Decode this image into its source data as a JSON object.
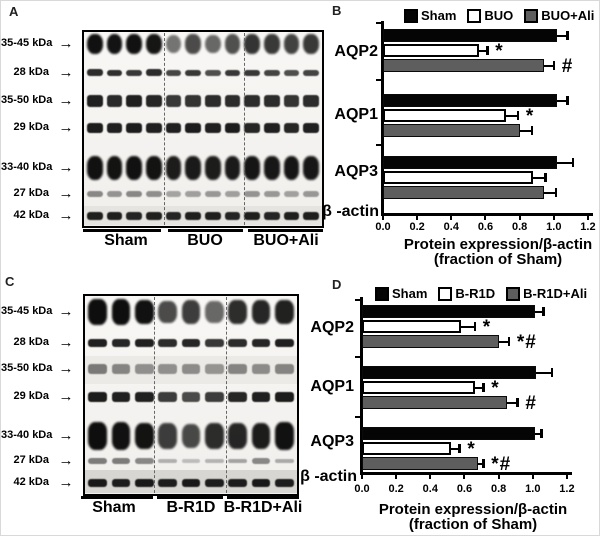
{
  "figure": {
    "panel_letters": {
      "A": "A",
      "B": "B",
      "C": "C",
      "D": "D"
    }
  },
  "icons": {
    "arrow": "→"
  },
  "blots": {
    "A": {
      "kda_labels": [
        "35-45 kDa",
        "28 kDa",
        "35-50 kDa",
        "29 kDa",
        "33-40 kDa",
        "27 kDa",
        "42 kDa"
      ],
      "groups": [
        "Sham",
        "BUO",
        "BUO+Ali"
      ],
      "lanes_per_group": 4,
      "rows": [
        {
          "kda": "35-45 kDa",
          "intensities": [
            0.97,
            0.96,
            0.97,
            0.95,
            0.55,
            0.72,
            0.6,
            0.7,
            0.82,
            0.8,
            0.76,
            0.8
          ]
        },
        {
          "kda": "28 kDa",
          "intensities": [
            0.85,
            0.84,
            0.8,
            0.85,
            0.74,
            0.8,
            0.7,
            0.8,
            0.8,
            0.75,
            0.7,
            0.75
          ]
        },
        {
          "kda": "35-50 kDa",
          "intensities": [
            0.9,
            0.86,
            0.9,
            0.88,
            0.8,
            0.82,
            0.85,
            0.85,
            0.85,
            0.85,
            0.82,
            0.85
          ]
        },
        {
          "kda": "29 kDa",
          "intensities": [
            0.92,
            0.9,
            0.92,
            0.9,
            0.9,
            0.92,
            0.9,
            0.92,
            0.88,
            0.9,
            0.88,
            0.9
          ]
        },
        {
          "kda": "33-40 kDa",
          "intensities": [
            0.97,
            0.96,
            0.97,
            0.96,
            0.92,
            0.93,
            0.92,
            0.93,
            0.95,
            0.94,
            0.95,
            0.94
          ]
        },
        {
          "kda": "27 kDa",
          "intensities": [
            0.45,
            0.4,
            0.45,
            0.42,
            0.33,
            0.35,
            0.38,
            0.35,
            0.4,
            0.38,
            0.34,
            0.38
          ]
        },
        {
          "kda": "42 kDa",
          "intensities": [
            0.9,
            0.9,
            0.88,
            0.9,
            0.88,
            0.9,
            0.9,
            0.88,
            0.9,
            0.88,
            0.9,
            0.9
          ]
        }
      ]
    },
    "C": {
      "kda_labels": [
        "35-45 kDa",
        "28 kDa",
        "35-50 kDa",
        "29 kDa",
        "33-40 kDa",
        "27 kDa",
        "42 kDa"
      ],
      "groups": [
        "Sham",
        "B-R1D",
        "B-R1D+Ali"
      ],
      "lanes_per_group": 3,
      "rows": [
        {
          "kda": "35-45 kDa",
          "intensities": [
            0.98,
            0.98,
            0.97,
            0.72,
            0.78,
            0.6,
            0.85,
            0.88,
            0.9
          ]
        },
        {
          "kda": "28 kDa",
          "intensities": [
            0.9,
            0.88,
            0.9,
            0.85,
            0.88,
            0.8,
            0.85,
            0.88,
            0.9
          ]
        },
        {
          "kda": "35-50 kDa",
          "intensities": [
            0.5,
            0.45,
            0.4,
            0.4,
            0.42,
            0.38,
            0.45,
            0.42,
            0.45
          ]
        },
        {
          "kda": "29 kDa",
          "intensities": [
            0.92,
            0.9,
            0.9,
            0.78,
            0.72,
            0.78,
            0.88,
            0.9,
            0.92
          ]
        },
        {
          "kda": "33-40 kDa",
          "intensities": [
            0.98,
            0.97,
            0.96,
            0.78,
            0.73,
            0.85,
            0.88,
            0.92,
            0.97
          ]
        },
        {
          "kda": "27 kDa",
          "intensities": [
            0.5,
            0.5,
            0.45,
            0.28,
            0.22,
            0.26,
            0.33,
            0.45,
            0.3
          ]
        },
        {
          "kda": "42 kDa",
          "intensities": [
            0.92,
            0.9,
            0.92,
            0.9,
            0.92,
            0.9,
            0.9,
            0.92,
            0.9
          ]
        }
      ]
    }
  },
  "chart_data": [
    {
      "panel": "B",
      "type": "bar",
      "orientation": "horizontal",
      "categories": [
        "AQP2",
        "AQP1",
        "AQP3"
      ],
      "baseline_label": "β -actin",
      "legend": [
        "Sham",
        "BUO",
        "BUO+Ali"
      ],
      "legend_colors": {
        "Sham": "#050505",
        "BUO": "#ffffff",
        "BUO+Ali": "#5e5e5e"
      },
      "series": [
        {
          "name": "Sham",
          "values": [
            1.02,
            1.02,
            1.02
          ],
          "errors": [
            0.06,
            0.06,
            0.09
          ],
          "annotations": [
            "",
            "",
            ""
          ]
        },
        {
          "name": "BUO",
          "values": [
            0.56,
            0.72,
            0.88
          ],
          "errors": [
            0.05,
            0.07,
            0.07
          ],
          "annotations": [
            "*",
            "*",
            ""
          ]
        },
        {
          "name": "BUO+Ali",
          "values": [
            0.94,
            0.8,
            0.94
          ],
          "errors": [
            0.06,
            0.07,
            0.07
          ],
          "annotations": [
            "#",
            "",
            ""
          ]
        }
      ],
      "xticks": [
        "0.0",
        "0.2",
        "0.4",
        "0.6",
        "0.8",
        "1.0",
        "1.2"
      ],
      "xlim": [
        0.0,
        1.2
      ],
      "grid": false,
      "legend_position": "top",
      "xlabel": [
        "Protein expression/β-actin",
        "(fraction of Sham)"
      ]
    },
    {
      "panel": "D",
      "type": "bar",
      "orientation": "horizontal",
      "categories": [
        "AQP2",
        "AQP1",
        "AQP3"
      ],
      "baseline_label": "β -actin",
      "legend": [
        "Sham",
        "B-R1D",
        "B-R1D+Ali"
      ],
      "legend_colors": {
        "Sham": "#050505",
        "B-R1D": "#ffffff",
        "B-R1D+Ali": "#5e5e5e"
      },
      "series": [
        {
          "name": "Sham",
          "values": [
            1.01,
            1.02,
            1.01
          ],
          "errors": [
            0.05,
            0.09,
            0.04
          ],
          "annotations": [
            "",
            "",
            ""
          ]
        },
        {
          "name": "B-R1D",
          "values": [
            0.58,
            0.66,
            0.52
          ],
          "errors": [
            0.08,
            0.05,
            0.05
          ],
          "annotations": [
            "*",
            "*",
            "*"
          ]
        },
        {
          "name": "B-R1D+Ali",
          "values": [
            0.8,
            0.85,
            0.68
          ],
          "errors": [
            0.06,
            0.06,
            0.03
          ],
          "annotations": [
            "*#",
            "#",
            "*#"
          ]
        }
      ],
      "xticks": [
        "0.0",
        "0.2",
        "0.4",
        "0.6",
        "0.8",
        "1.0",
        "1.2"
      ],
      "xlim": [
        0.0,
        1.2
      ],
      "grid": false,
      "legend_position": "top",
      "xlabel": [
        "Protein expression/β-actin",
        "(fraction of Sham)"
      ]
    }
  ]
}
